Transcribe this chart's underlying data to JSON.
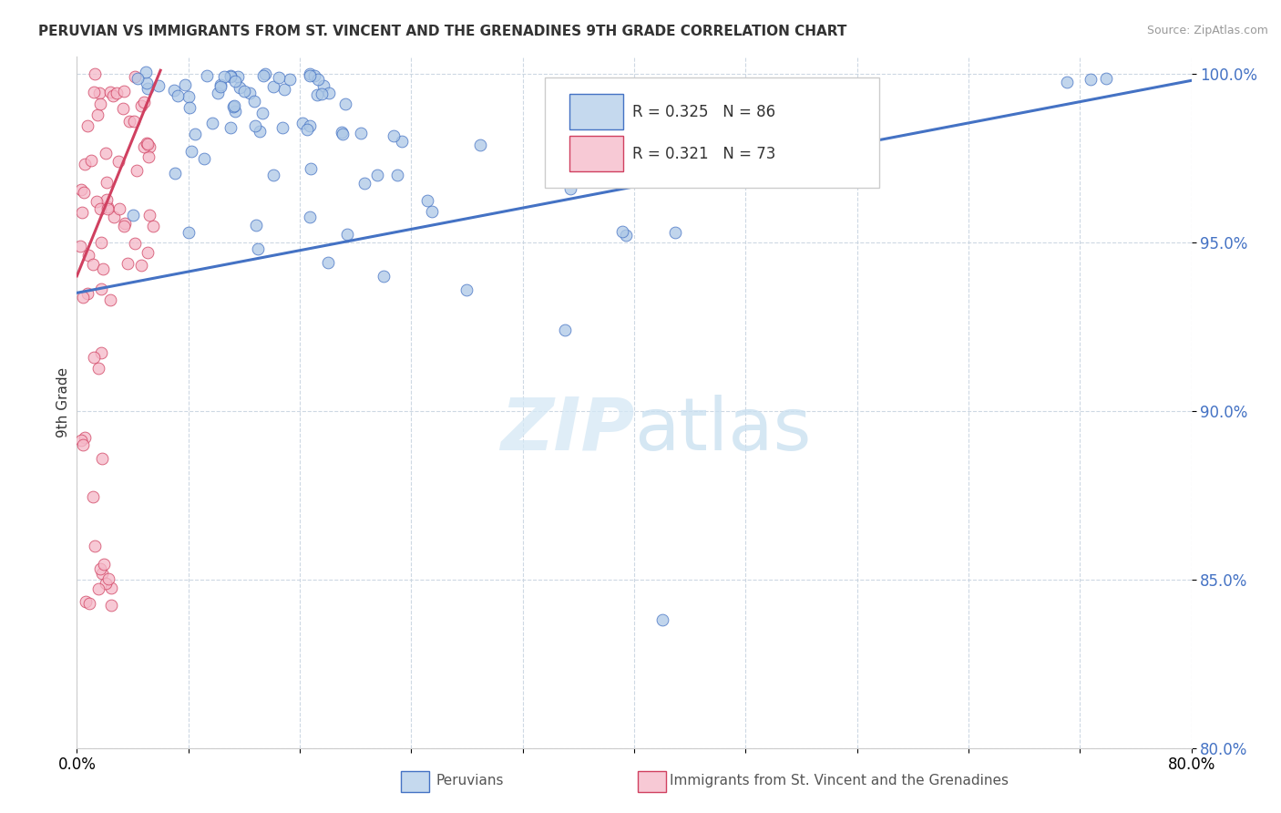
{
  "title": "PERUVIAN VS IMMIGRANTS FROM ST. VINCENT AND THE GRENADINES 9TH GRADE CORRELATION CHART",
  "source": "Source: ZipAtlas.com",
  "ylabel": "9th Grade",
  "xmin": 0.0,
  "xmax": 0.8,
  "ymin": 0.8,
  "ymax": 1.005,
  "r_blue": 0.325,
  "n_blue": 86,
  "r_pink": 0.321,
  "n_pink": 73,
  "blue_color": "#adc8e6",
  "pink_color": "#f5b8c8",
  "line_blue_color": "#4472c4",
  "line_pink_color": "#d04060",
  "legend_box_blue": "#c5d9ee",
  "legend_box_pink": "#f7c9d5",
  "watermark_zip": "ZIP",
  "watermark_atlas": "atlas",
  "background_color": "#ffffff",
  "grid_color": "#c8d4e0",
  "blue_trend_x0": 0.0,
  "blue_trend_y0": 0.935,
  "blue_trend_x1": 0.8,
  "blue_trend_y1": 0.998,
  "pink_trend_x0": 0.0,
  "pink_trend_y0": 0.94,
  "pink_trend_x1": 0.06,
  "pink_trend_y1": 1.001
}
